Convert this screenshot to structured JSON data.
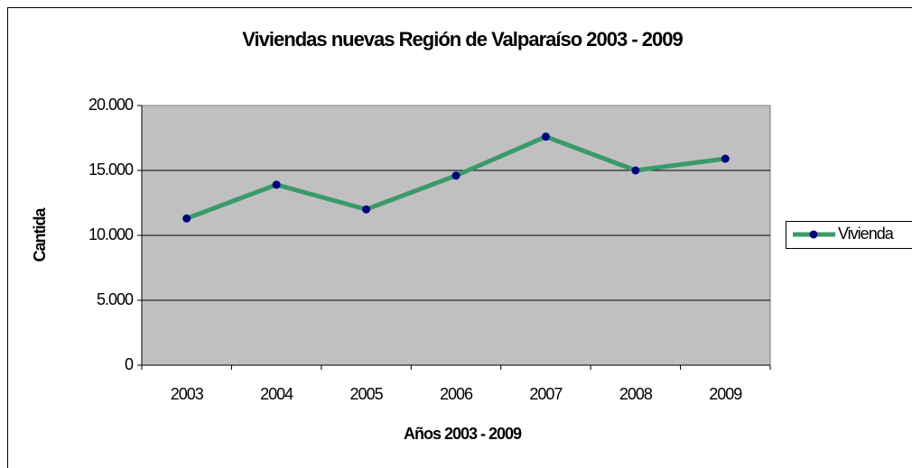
{
  "chart_data": {
    "type": "line",
    "title": "Viviendas nuevas Región de Valparaíso 2003 - 2009",
    "x_label": "Años 2003 - 2009",
    "y_label": "Cantida",
    "categories": [
      "2003",
      "2004",
      "2005",
      "2006",
      "2007",
      "2008",
      "2009"
    ],
    "series": [
      {
        "name": "Vivienda",
        "color": "#3a9a6a",
        "marker_color": "#000080",
        "values": [
          11300,
          13900,
          12000,
          14600,
          17600,
          15000,
          15900
        ]
      }
    ],
    "ylim": [
      0,
      20000
    ],
    "yticks": [
      0,
      {
        "value": 5000,
        "label": "5.000"
      },
      {
        "value": 10000,
        "label": "10.000"
      },
      {
        "value": 15000,
        "label": "15.000"
      },
      {
        "value": 20000,
        "label": "20.000"
      }
    ],
    "grid": true,
    "legend": "right"
  }
}
